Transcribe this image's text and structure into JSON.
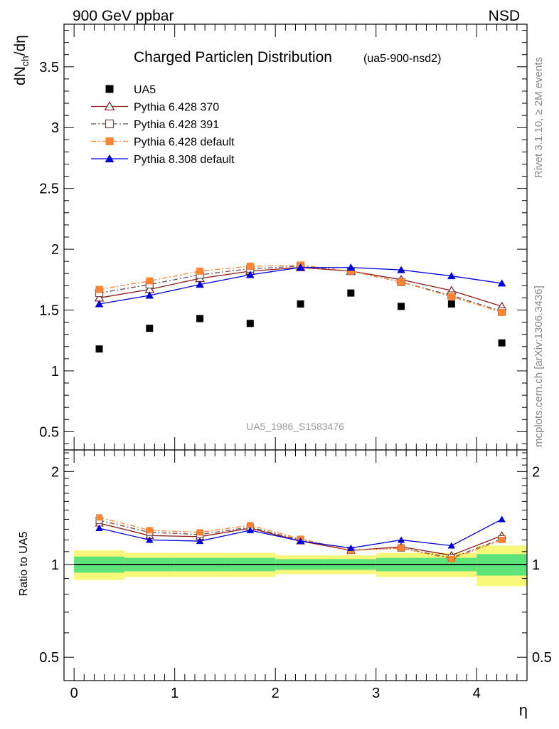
{
  "header": {
    "left": "900 GeV ppbar",
    "right": "NSD"
  },
  "side": {
    "rivet": "Rivet 3.1.10, ≥ 2M events",
    "mcplots": "mcplots.cern.ch [arXiv:1306.3436]"
  },
  "chart_data": [
    {
      "type": "scatter",
      "title": "Charged Particleη Distribution",
      "subtitle": "(ua5-900-nsd2)",
      "watermark": "UA5_1986_S1583476",
      "ylabel": "dN_ch/dη",
      "xlabel": "η",
      "xlim": [
        -0.1,
        4.5
      ],
      "ylim": [
        0.35,
        3.85
      ],
      "yticks": [
        0.5,
        1,
        1.5,
        2,
        2.5,
        3,
        3.5
      ],
      "ytick_labels": [
        "0.5",
        "1",
        "1.5",
        "2",
        "2.5",
        "3",
        "3.5"
      ],
      "x": [
        0.25,
        0.75,
        1.25,
        1.75,
        2.25,
        2.75,
        3.25,
        3.75,
        4.25
      ],
      "legend_position": "top-left",
      "series": [
        {
          "name": "UA5",
          "style": "points",
          "marker": "square",
          "color": "#000000",
          "values": [
            1.18,
            1.35,
            1.43,
            1.39,
            1.55,
            1.64,
            1.53,
            1.55,
            1.23
          ]
        },
        {
          "name": "Pythia 6.428 370",
          "style": "solid",
          "marker": "triangle-open",
          "color": "#8b1a1a",
          "values": [
            1.6,
            1.67,
            1.76,
            1.82,
            1.85,
            1.82,
            1.75,
            1.66,
            1.53
          ]
        },
        {
          "name": "Pythia 6.428 391",
          "style": "dashdot",
          "marker": "square-open",
          "color": "#6b4c4c",
          "values": [
            1.64,
            1.71,
            1.79,
            1.84,
            1.86,
            1.82,
            1.73,
            1.62,
            1.49
          ]
        },
        {
          "name": "Pythia 6.428 default",
          "style": "dashdot",
          "marker": "square",
          "color": "#ff8533",
          "values": [
            1.67,
            1.74,
            1.82,
            1.86,
            1.87,
            1.82,
            1.73,
            1.61,
            1.48
          ]
        },
        {
          "name": "Pythia 8.308 default",
          "style": "solid",
          "marker": "triangle",
          "color": "#0000dd",
          "values": [
            1.55,
            1.62,
            1.71,
            1.79,
            1.85,
            1.85,
            1.83,
            1.78,
            1.72
          ]
        }
      ]
    },
    {
      "type": "line",
      "ylabel": "Ratio to UA5",
      "xlabel": "η",
      "xlim": [
        -0.1,
        4.5
      ],
      "ylim": [
        0.42,
        2.35
      ],
      "log_y": true,
      "yticks": [
        0.5,
        1,
        2
      ],
      "ytick_labels": [
        "0.5",
        "1",
        "2"
      ],
      "xticks": [
        0,
        1,
        2,
        3,
        4
      ],
      "xtick_labels": [
        "0",
        "1",
        "2",
        "3",
        "4"
      ],
      "x": [
        0.25,
        0.75,
        1.25,
        1.75,
        2.25,
        2.75,
        3.25,
        3.75,
        4.25
      ],
      "bands": {
        "edges": [
          0,
          0.5,
          1,
          1.5,
          2,
          2.5,
          3,
          3.5,
          4,
          4.5
        ],
        "inner": [
          0.06,
          0.05,
          0.05,
          0.05,
          0.04,
          0.04,
          0.05,
          0.05,
          0.08
        ],
        "outer": [
          0.11,
          0.09,
          0.09,
          0.09,
          0.07,
          0.07,
          0.09,
          0.09,
          0.15
        ],
        "inner_color": "#5ee27a",
        "outer_color": "#f7f77a"
      },
      "series": [
        {
          "name": "Pythia 6.428 370",
          "color": "#8b1a1a",
          "style": "solid",
          "marker": "triangle-open",
          "values": [
            1.36,
            1.24,
            1.23,
            1.31,
            1.19,
            1.11,
            1.14,
            1.07,
            1.24
          ]
        },
        {
          "name": "Pythia 6.428 391",
          "color": "#6b4c4c",
          "style": "dashdot",
          "marker": "square-open",
          "values": [
            1.39,
            1.27,
            1.25,
            1.32,
            1.2,
            1.11,
            1.13,
            1.05,
            1.21
          ]
        },
        {
          "name": "Pythia 6.428 default",
          "color": "#ff8533",
          "style": "dashdot",
          "marker": "square",
          "values": [
            1.42,
            1.29,
            1.27,
            1.34,
            1.21,
            1.11,
            1.13,
            1.04,
            1.2
          ]
        },
        {
          "name": "Pythia 8.308 default",
          "color": "#0000dd",
          "style": "solid",
          "marker": "triangle",
          "values": [
            1.31,
            1.2,
            1.19,
            1.29,
            1.19,
            1.13,
            1.2,
            1.15,
            1.4
          ]
        }
      ]
    }
  ]
}
